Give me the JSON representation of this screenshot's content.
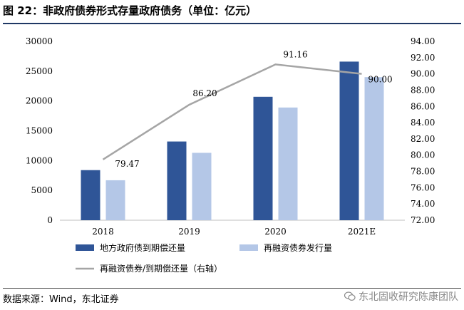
{
  "header": {
    "title": "图  22：非政府债券形式存量政府债务（单位：亿元）"
  },
  "footer": {
    "source": "数据来源：Wind，东北证券",
    "watermark": "东北固收研究陈康团队",
    "watermark_icon": "wechat-icon"
  },
  "chart_data": {
    "type": "bar",
    "categories": [
      "2018",
      "2019",
      "2020",
      "2021E"
    ],
    "series": [
      {
        "name": "地方政府债到期偿还量",
        "type": "bar",
        "axis": "left",
        "color": "#2f5597",
        "values": [
          8400,
          13200,
          20700,
          26600
        ]
      },
      {
        "name": "再融资债券发行量",
        "type": "bar",
        "axis": "left",
        "color": "#b4c7e7",
        "values": [
          6700,
          11300,
          18900,
          24000
        ]
      },
      {
        "name": "再融资债券/到期偿还量（右轴）",
        "type": "line",
        "axis": "right",
        "color": "#a5a5a5",
        "values": [
          79.47,
          86.2,
          91.16,
          90.0
        ],
        "data_labels": [
          "79.47",
          "86.20",
          "91.16",
          "90.00"
        ]
      }
    ],
    "y_left": {
      "min": 0,
      "max": 30000,
      "ticks": [
        "0",
        "5000",
        "10000",
        "15000",
        "20000",
        "25000",
        "30000"
      ]
    },
    "y_right": {
      "min": 72,
      "max": 94,
      "ticks": [
        "72.00",
        "74.00",
        "76.00",
        "78.00",
        "80.00",
        "82.00",
        "84.00",
        "86.00",
        "88.00",
        "90.00",
        "92.00",
        "94.00"
      ]
    },
    "grid": false,
    "legend_position": "bottom"
  }
}
